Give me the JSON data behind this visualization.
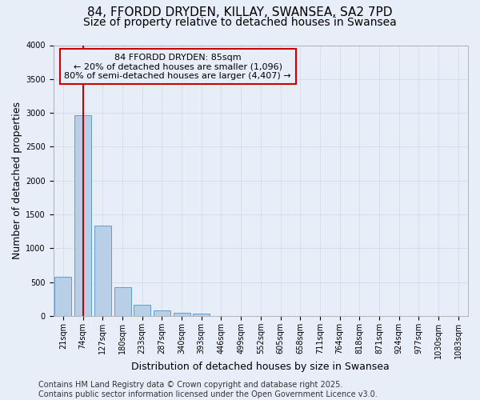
{
  "title_line1": "84, FFORDD DRYDEN, KILLAY, SWANSEA, SA2 7PD",
  "title_line2": "Size of property relative to detached houses in Swansea",
  "xlabel": "Distribution of detached houses by size in Swansea",
  "ylabel": "Number of detached properties",
  "bar_values": [
    580,
    2970,
    1330,
    420,
    170,
    80,
    45,
    30,
    0,
    0,
    0,
    0,
    0,
    0,
    0,
    0,
    0,
    0,
    0,
    0,
    0
  ],
  "bar_labels": [
    "21sqm",
    "74sqm",
    "127sqm",
    "180sqm",
    "233sqm",
    "287sqm",
    "340sqm",
    "393sqm",
    "446sqm",
    "499sqm",
    "552sqm",
    "605sqm",
    "658sqm",
    "711sqm",
    "764sqm",
    "818sqm",
    "871sqm",
    "924sqm",
    "977sqm",
    "1030sqm",
    "1083sqm"
  ],
  "bar_color": "#b8cfe8",
  "bar_edge_color": "#6699cc",
  "grid_color": "#d0d8e8",
  "background_color": "#e8eef8",
  "annotation_box_color": "#cc0000",
  "vline_color": "#cc0000",
  "vline_x": 1.0,
  "ylim": [
    0,
    4000
  ],
  "yticks": [
    0,
    500,
    1000,
    1500,
    2000,
    2500,
    3000,
    3500,
    4000
  ],
  "annotation_text": "84 FFORDD DRYDEN: 85sqm\n← 20% of detached houses are smaller (1,096)\n80% of semi-detached houses are larger (4,407) →",
  "footer_text": "Contains HM Land Registry data © Crown copyright and database right 2025.\nContains public sector information licensed under the Open Government Licence v3.0.",
  "title_fontsize": 11,
  "subtitle_fontsize": 10,
  "label_fontsize": 9,
  "tick_fontsize": 7,
  "annot_fontsize": 8,
  "footer_fontsize": 7
}
